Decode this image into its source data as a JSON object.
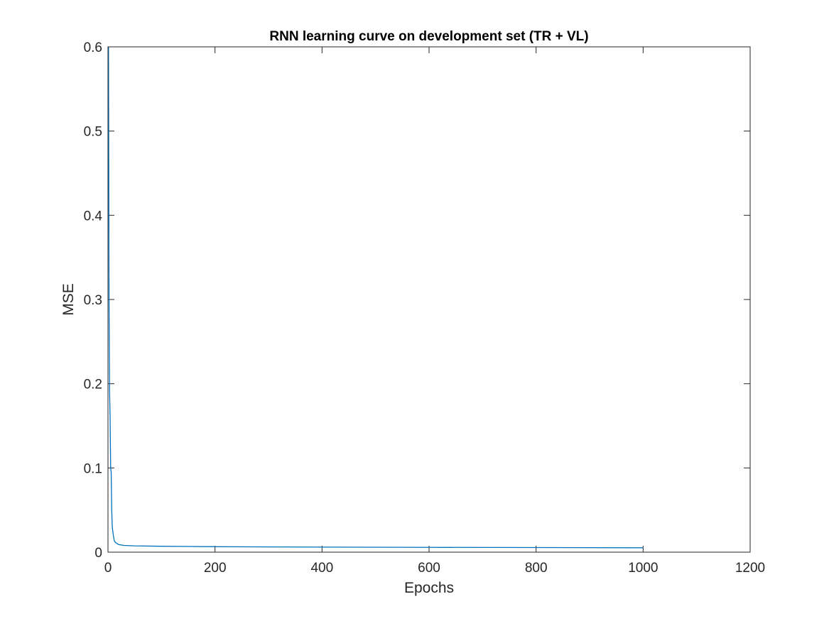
{
  "chart_data": {
    "type": "line",
    "title": "RNN learning curve on development set (TR + VL)",
    "xlabel": "Epochs",
    "ylabel": "MSE",
    "xlim": [
      0,
      1200
    ],
    "ylim": [
      0,
      0.6
    ],
    "xticks": [
      0,
      200,
      400,
      600,
      800,
      1000,
      1200
    ],
    "yticks": [
      0,
      0.1,
      0.2,
      0.3,
      0.4,
      0.5,
      0.6
    ],
    "xtick_labels": [
      "0",
      "200",
      "400",
      "600",
      "800",
      "1000",
      "1200"
    ],
    "ytick_labels": [
      "0",
      "0.1",
      "0.2",
      "0.3",
      "0.4",
      "0.5",
      "0.6"
    ],
    "grid": false,
    "box": true,
    "series": [
      {
        "color": "#0072bd",
        "x": [
          1,
          2,
          3,
          4,
          5,
          6,
          7,
          8,
          9,
          10,
          12,
          15,
          20,
          30,
          50,
          100,
          200,
          400,
          600,
          800,
          1000
        ],
        "y": [
          0.6,
          0.3,
          0.19,
          0.16,
          0.1,
          0.095,
          0.05,
          0.03,
          0.025,
          0.02,
          0.013,
          0.011,
          0.009,
          0.008,
          0.0075,
          0.007,
          0.0065,
          0.006,
          0.0057,
          0.0055,
          0.0052
        ]
      }
    ]
  }
}
